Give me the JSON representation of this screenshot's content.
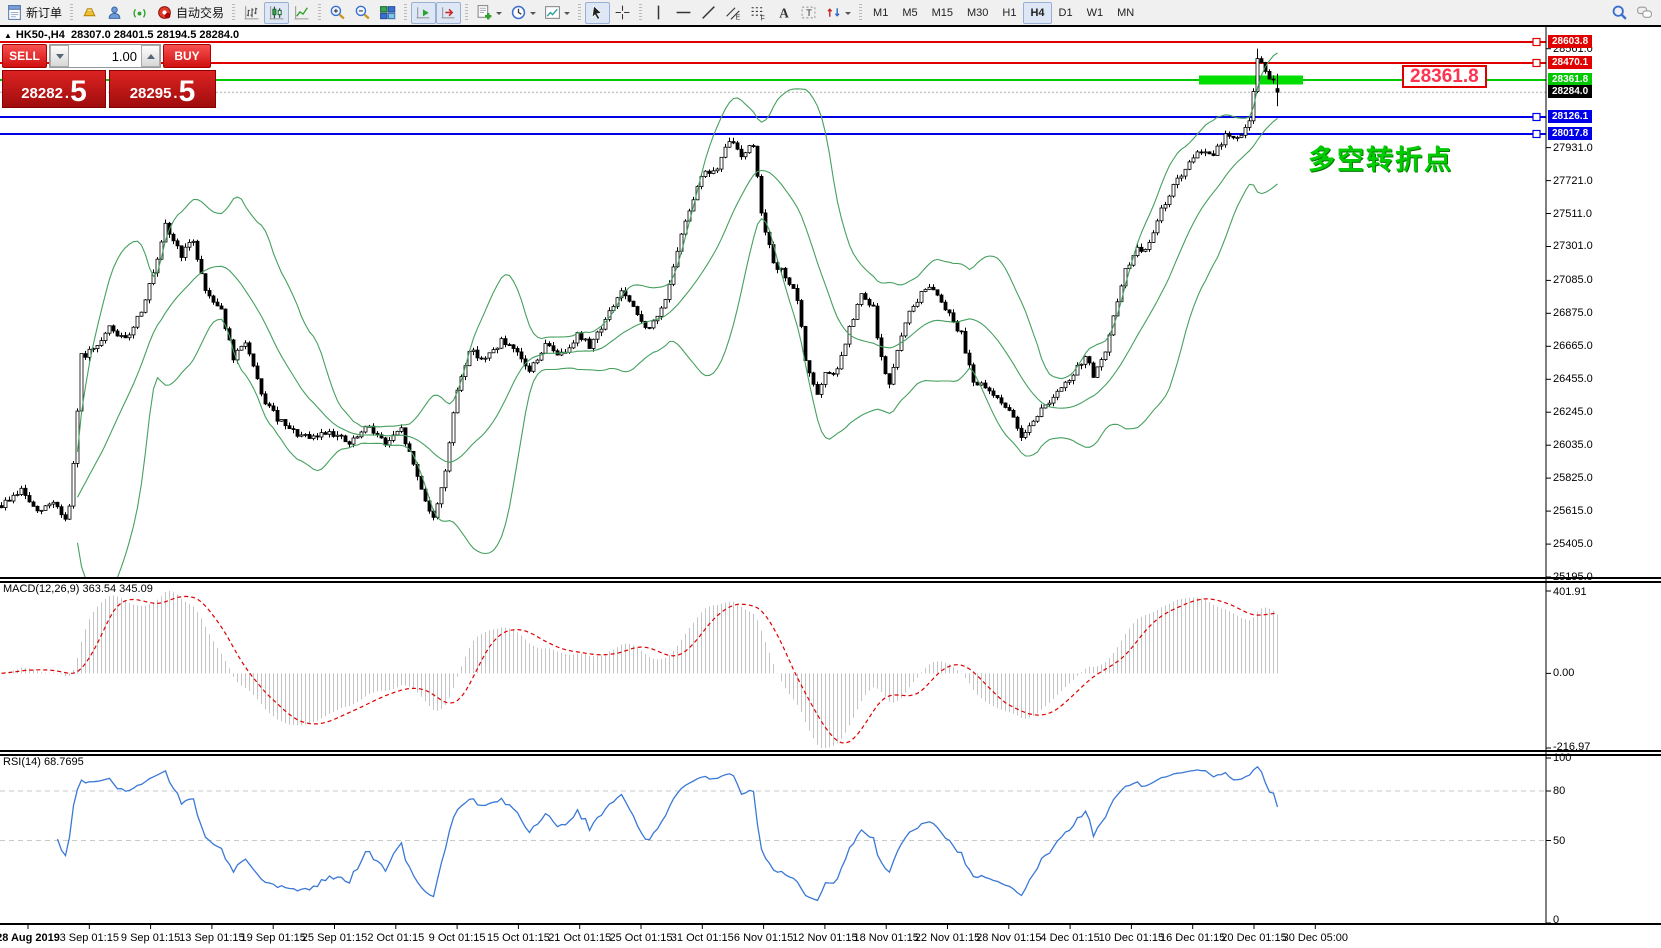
{
  "toolbar": {
    "groups": [
      {
        "items": [
          {
            "name": "new-order-button",
            "icon": "doc",
            "label": "新订单"
          }
        ]
      },
      {
        "items": [
          {
            "name": "gold-button",
            "icon": "gold"
          },
          {
            "name": "community-button",
            "icon": "cloud-user"
          },
          {
            "name": "signals-button",
            "icon": "signal"
          },
          {
            "name": "auto-trading-button",
            "icon": "autotrade",
            "label": "自动交易"
          }
        ]
      },
      {
        "items": [
          {
            "name": "bar-chart-button",
            "icon": "bars"
          },
          {
            "name": "candlestick-chart-button",
            "icon": "candles",
            "active": true
          },
          {
            "name": "line-chart-button",
            "icon": "linechart"
          }
        ]
      },
      {
        "items": [
          {
            "name": "zoom-in-button",
            "icon": "zoomin"
          },
          {
            "name": "zoom-out-button",
            "icon": "zoomout"
          },
          {
            "name": "tile-windows-button",
            "icon": "tiles"
          }
        ]
      },
      {
        "items": [
          {
            "name": "auto-scroll-button",
            "icon": "autoscroll",
            "active": true
          },
          {
            "name": "chart-shift-button",
            "icon": "shift",
            "active": true
          }
        ]
      },
      {
        "items": [
          {
            "name": "indicators-button",
            "icon": "addind",
            "dropdown": true
          },
          {
            "name": "periods-button",
            "icon": "clock",
            "dropdown": true
          },
          {
            "name": "templates-button",
            "icon": "template",
            "dropdown": true
          }
        ]
      },
      {
        "items": [
          {
            "name": "cursor-button",
            "icon": "cursor",
            "active": true
          },
          {
            "name": "crosshair-button",
            "icon": "crosshair"
          }
        ]
      },
      {
        "items": [
          {
            "name": "vertical-line-button",
            "icon": "vline"
          },
          {
            "name": "horizontal-line-button",
            "icon": "hline"
          },
          {
            "name": "trendline-button",
            "icon": "tline"
          },
          {
            "name": "equidistant-channel-button",
            "icon": "channel"
          },
          {
            "name": "fibonacci-button",
            "icon": "fibo"
          },
          {
            "name": "text-button",
            "icon": "textA"
          },
          {
            "name": "text-label-button",
            "icon": "labelT"
          },
          {
            "name": "arrows-button",
            "icon": "arrows",
            "dropdown": true
          }
        ]
      }
    ],
    "timeframes": [
      "M1",
      "M5",
      "M15",
      "M30",
      "H1",
      "H4",
      "D1",
      "W1",
      "MN"
    ],
    "active_timeframe": "H4",
    "right_items": [
      {
        "name": "search-button",
        "icon": "search"
      },
      {
        "name": "chat-button",
        "icon": "chat"
      }
    ]
  },
  "chart": {
    "collapse_marker": "▲",
    "symbol_period": "HK50-,H4",
    "ohlc_line": "28307.0 28401.5 28194.5 28284.0",
    "trade_panel": {
      "sell_label": "SELL",
      "buy_label": "BUY",
      "volume": "1.00",
      "bid_main": "28282",
      "bid_point": ".",
      "bid_big": "5",
      "ask_main": "28295",
      "ask_point": ".",
      "ask_big": "5"
    },
    "big_price_label": "28361.8",
    "annotation": "多空转折点"
  },
  "macd": {
    "label": "MACD(12,26,9) 363.54 345.09",
    "axis_max": "401.91",
    "axis_zero": "0.00",
    "axis_min": "-216.97"
  },
  "rsi": {
    "label": "RSI(14) 68.7695",
    "axis": [
      "100",
      "80",
      "50",
      "0"
    ]
  },
  "chart_data": {
    "type": "candlestick",
    "symbol": "HK50-",
    "timeframe": "H4",
    "last_candle": {
      "open": 28307.0,
      "high": 28401.5,
      "low": 28194.5,
      "close": 28284.0
    },
    "current_price": 28284.0,
    "price_axis_ticks": [
      "28561.0",
      "27931.0",
      "27721.0",
      "27511.0",
      "27301.0",
      "27085.0",
      "26875.0",
      "26665.0",
      "26455.0",
      "26245.0",
      "26035.0",
      "25825.0",
      "25615.0",
      "25405.0",
      "25195.0"
    ],
    "levels": [
      {
        "price": 28603.8,
        "label": "28603.8",
        "color": "#e00000",
        "marker": true
      },
      {
        "price": 28470.1,
        "label": "28470.1",
        "color": "#e00000",
        "marker": true
      },
      {
        "price": 28361.8,
        "label": "28361.8",
        "color": "#00c800",
        "marker": false
      },
      {
        "price": 28126.1,
        "label": "28126.1",
        "color": "#0000e8",
        "marker": true
      },
      {
        "price": 28017.8,
        "label": "28017.8",
        "color": "#0000e8",
        "marker": true
      }
    ],
    "current_price_label": "28284.0",
    "highlight_band": {
      "price": 28361.8,
      "color": "#00dd00"
    },
    "candle_count": 320,
    "close_path_keyframes": [
      [
        0,
        25650
      ],
      [
        5,
        25750
      ],
      [
        9,
        25600
      ],
      [
        13,
        25680
      ],
      [
        16,
        25560
      ],
      [
        17,
        25640
      ],
      [
        18,
        25900
      ],
      [
        20,
        26600
      ],
      [
        24,
        26650
      ],
      [
        27,
        26780
      ],
      [
        31,
        26700
      ],
      [
        35,
        26900
      ],
      [
        39,
        27200
      ],
      [
        41,
        27430
      ],
      [
        45,
        27250
      ],
      [
        48,
        27340
      ],
      [
        51,
        27020
      ],
      [
        55,
        26900
      ],
      [
        58,
        26580
      ],
      [
        61,
        26700
      ],
      [
        65,
        26350
      ],
      [
        69,
        26200
      ],
      [
        72,
        26130
      ],
      [
        77,
        26070
      ],
      [
        82,
        26130
      ],
      [
        87,
        26040
      ],
      [
        92,
        26160
      ],
      [
        96,
        26040
      ],
      [
        100,
        26130
      ],
      [
        103,
        25910
      ],
      [
        106,
        25690
      ],
      [
        108,
        25560
      ],
      [
        111,
        25880
      ],
      [
        114,
        26390
      ],
      [
        117,
        26640
      ],
      [
        121,
        26580
      ],
      [
        125,
        26700
      ],
      [
        129,
        26610
      ],
      [
        132,
        26510
      ],
      [
        136,
        26670
      ],
      [
        140,
        26610
      ],
      [
        144,
        26740
      ],
      [
        147,
        26670
      ],
      [
        151,
        26830
      ],
      [
        155,
        27020
      ],
      [
        159,
        26860
      ],
      [
        162,
        26770
      ],
      [
        165,
        26900
      ],
      [
        168,
        27150
      ],
      [
        171,
        27470
      ],
      [
        175,
        27760
      ],
      [
        179,
        27790
      ],
      [
        182,
        27980
      ],
      [
        185,
        27890
      ],
      [
        188,
        27950
      ],
      [
        190,
        27530
      ],
      [
        193,
        27180
      ],
      [
        196,
        27120
      ],
      [
        199,
        26960
      ],
      [
        201,
        26580
      ],
      [
        204,
        26350
      ],
      [
        206,
        26480
      ],
      [
        209,
        26510
      ],
      [
        212,
        26770
      ],
      [
        215,
        26990
      ],
      [
        218,
        26900
      ],
      [
        220,
        26580
      ],
      [
        222,
        26420
      ],
      [
        226,
        26830
      ],
      [
        229,
        26960
      ],
      [
        232,
        27060
      ],
      [
        235,
        26960
      ],
      [
        238,
        26830
      ],
      [
        240,
        26740
      ],
      [
        243,
        26450
      ],
      [
        246,
        26390
      ],
      [
        250,
        26320
      ],
      [
        253,
        26200
      ],
      [
        255,
        26100
      ],
      [
        259,
        26230
      ],
      [
        262,
        26320
      ],
      [
        265,
        26390
      ],
      [
        268,
        26480
      ],
      [
        271,
        26610
      ],
      [
        273,
        26480
      ],
      [
        276,
        26610
      ],
      [
        279,
        26960
      ],
      [
        281,
        27150
      ],
      [
        284,
        27280
      ],
      [
        287,
        27310
      ],
      [
        290,
        27530
      ],
      [
        293,
        27690
      ],
      [
        297,
        27820
      ],
      [
        300,
        27920
      ],
      [
        303,
        27880
      ],
      [
        306,
        28010
      ],
      [
        309,
        27980
      ],
      [
        312,
        28110
      ],
      [
        314,
        28480
      ],
      [
        316,
        28430
      ],
      [
        318,
        28340
      ],
      [
        319,
        28284
      ]
    ],
    "indicators": {
      "bollinger": {
        "period": 20,
        "deviation": 2,
        "color": "#46a05f"
      },
      "macd": {
        "fast": 12,
        "slow": 26,
        "signal": 9,
        "displayed_values": [
          363.54,
          345.09
        ],
        "axis_max": 401.91,
        "axis_min": -216.97
      },
      "rsi": {
        "period": 14,
        "displayed_value": 68.7695,
        "levels": [
          80,
          50
        ]
      }
    },
    "time_axis": [
      "28 Aug 2019",
      "3 Sep 01:15",
      "9 Sep 01:15",
      "13 Sep 01:15",
      "19 Sep 01:15",
      "25 Sep 01:15",
      "2 Oct 01:15",
      "9 Oct 01:15",
      "15 Oct 01:15",
      "21 Oct 01:15",
      "25 Oct 01:15",
      "31 Oct 01:15",
      "6 Nov 01:15",
      "12 Nov 01:15",
      "18 Nov 01:15",
      "22 Nov 01:15",
      "28 Nov 01:15",
      "4 Dec 01:15",
      "10 Dec 01:15",
      "16 Dec 01:15",
      "20 Dec 01:15",
      "30 Dec 05:00"
    ]
  }
}
